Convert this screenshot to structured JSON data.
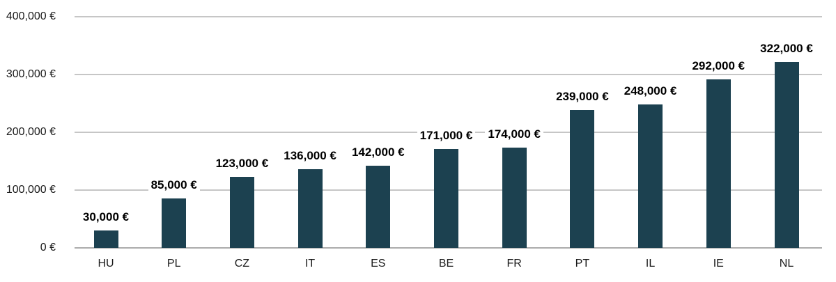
{
  "chart_data": {
    "type": "bar",
    "title": "",
    "xlabel": "",
    "ylabel": "",
    "grid": true,
    "legend": false,
    "categories": [
      "HU",
      "PL",
      "CZ",
      "IT",
      "ES",
      "BE",
      "FR",
      "PT",
      "IL",
      "IE",
      "NL"
    ],
    "values": [
      30000,
      85000,
      123000,
      136000,
      142000,
      171000,
      174000,
      239000,
      248000,
      292000,
      322000
    ],
    "value_labels": [
      "30,000 €",
      "85,000 €",
      "123,000 €",
      "136,000 €",
      "142,000 €",
      "171,000 €",
      "174,000 €",
      "239,000 €",
      "248,000 €",
      "292,000 €",
      "322,000 €"
    ],
    "ylim": [
      0,
      400000
    ],
    "y_ticks": [
      {
        "value": 0,
        "label": "0 €"
      },
      {
        "value": 100000,
        "label": "100,000 €"
      },
      {
        "value": 200000,
        "label": "200,000 €"
      },
      {
        "value": 300000,
        "label": "300,000 €"
      },
      {
        "value": 400000,
        "label": "400,000 €"
      }
    ],
    "colors": {
      "bar": "#1c4150",
      "gridline": "#c6c6c6",
      "baseline": "#acacac",
      "tick_text": "#1a1a1a",
      "value_text": "#000000",
      "background": "#ffffff"
    }
  }
}
